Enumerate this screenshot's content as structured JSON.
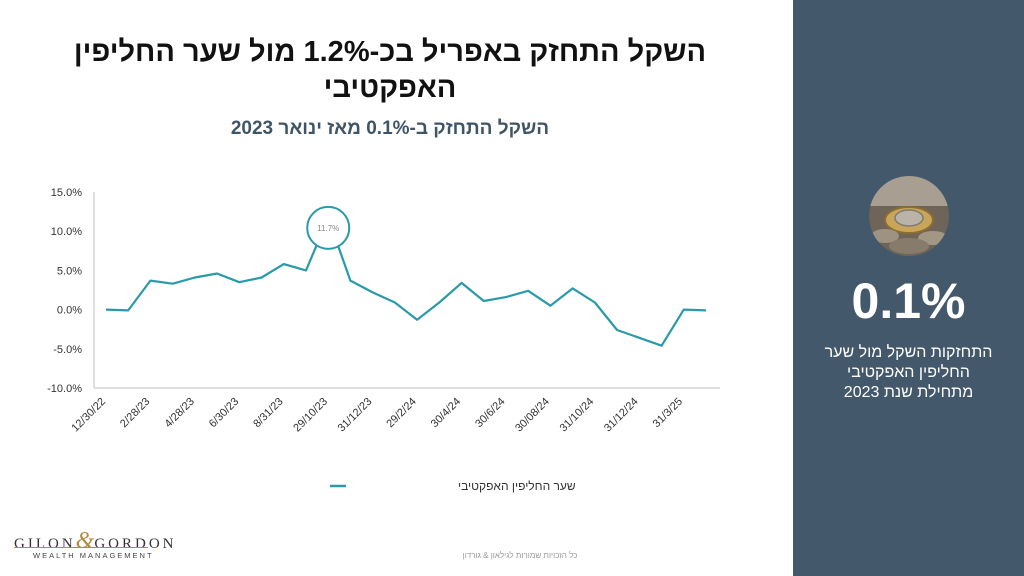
{
  "header": {
    "title_line1": "השקל התחזק באפריל בכ-1.2% מול שער החליפין",
    "title_line2": "האפקטיבי",
    "subtitle": "השקל התחזק ב-0.1% מאז ינואר 2023"
  },
  "sidebar": {
    "big_value": "0.1%",
    "description_lines": [
      "התחזקות השקל מול שער",
      "החליפין האפקטיבי",
      "מתחילת שנת 2023"
    ],
    "background_color": "#44586b"
  },
  "logo": {
    "name_left": "GILON",
    "ampersand": "&",
    "name_right": "GORDON",
    "tagline": "WEALTH MANAGEMENT"
  },
  "footer": {
    "text": "כל הזכויות שמורות לגילאון & גורדון"
  },
  "chart_data": {
    "type": "line",
    "x_tick_labels": [
      "12/30/22",
      "2/28/23",
      "4/28/23",
      "6/30/23",
      "8/31/23",
      "29/10/23",
      "31/12/23",
      "29/2/24",
      "30/4/24",
      "30/6/24",
      "30/08/24",
      "31/10/24",
      "31/12/24",
      "31/3/25"
    ],
    "y_tick_labels": [
      "15.0%",
      "10.0%",
      "5.0%",
      "0.0%",
      "-5.0%",
      "-10.0%"
    ],
    "ylim": [
      -10,
      15
    ],
    "series": [
      {
        "name": "שער החליפין האפקטיבי",
        "color": "#2a9aa8",
        "values": [
          0.0,
          -0.1,
          3.7,
          3.3,
          4.1,
          4.6,
          3.5,
          4.1,
          5.8,
          5.0,
          11.7,
          3.7,
          2.2,
          0.9,
          -1.3,
          0.9,
          3.4,
          1.1,
          1.6,
          2.4,
          0.5,
          2.7,
          0.9,
          -2.6,
          -3.6,
          -4.6,
          0.0,
          -0.1
        ]
      }
    ],
    "annotation": {
      "text": "11.7%",
      "index": 10
    },
    "legend": {
      "position": "bottom",
      "label": "שער החליפין האפקטיבי"
    },
    "grid": false
  }
}
